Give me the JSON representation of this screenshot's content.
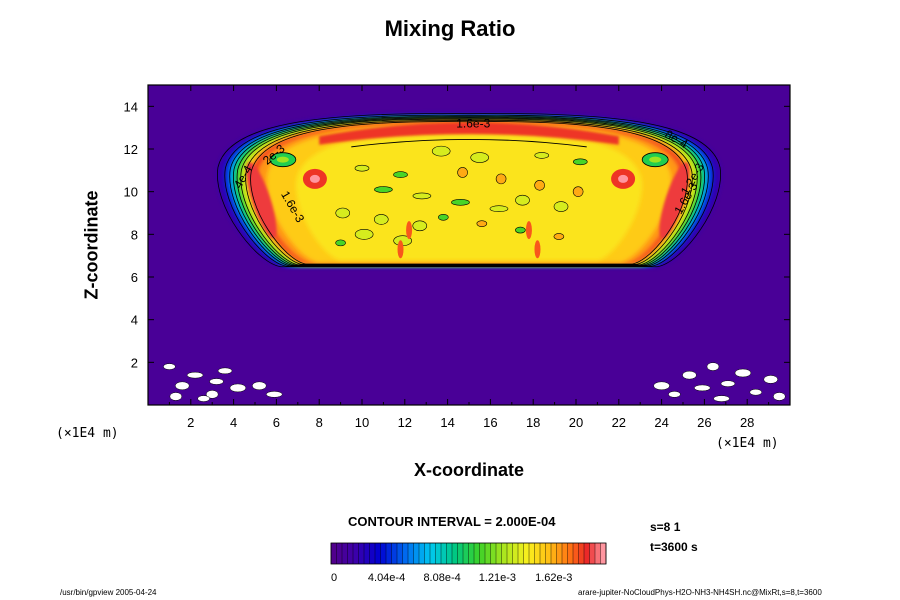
{
  "chart_data": {
    "type": "heatmap",
    "title": "Mixing Ratio",
    "xlabel": "X-coordinate",
    "ylabel": "Z-coordinate",
    "x_unit": "(×1E4 m)",
    "z_unit": "(×1E4 m)",
    "xlim": [
      0,
      30
    ],
    "ylim": [
      0,
      15
    ],
    "x_ticks": [
      2,
      4,
      6,
      8,
      10,
      12,
      14,
      16,
      18,
      20,
      22,
      24,
      26,
      28
    ],
    "y_ticks": [
      2,
      4,
      6,
      8,
      10,
      12,
      14
    ],
    "contour_interval": "CONTOUR INTERVAL = 2.000E-04",
    "colorbar_labels": [
      "0",
      "4.04e-4",
      "8.08e-4",
      "1.21e-3",
      "1.62e-3"
    ],
    "colorbar_max": 0.002,
    "contour_labels": [
      "1.6e-3",
      "1.6e-3",
      "1.6e-3",
      "1.2e-3",
      "8e-4",
      "4e-4",
      "2e-3"
    ],
    "cloud_layer": {
      "x_range": [
        3.5,
        26.5
      ],
      "z_range": [
        6.5,
        13.6
      ],
      "core_value": 0.0015,
      "edge_max": 0.0019
    }
  },
  "info": {
    "s": "s=8 1",
    "t": "t=3600 s"
  },
  "footer": {
    "left": "/usr/bin/gpview 2005-04-24",
    "right": "arare-jupiter-NoCloudPhys-H2O-NH3-NH4SH.nc@MixRt,s=8,t=3600"
  }
}
